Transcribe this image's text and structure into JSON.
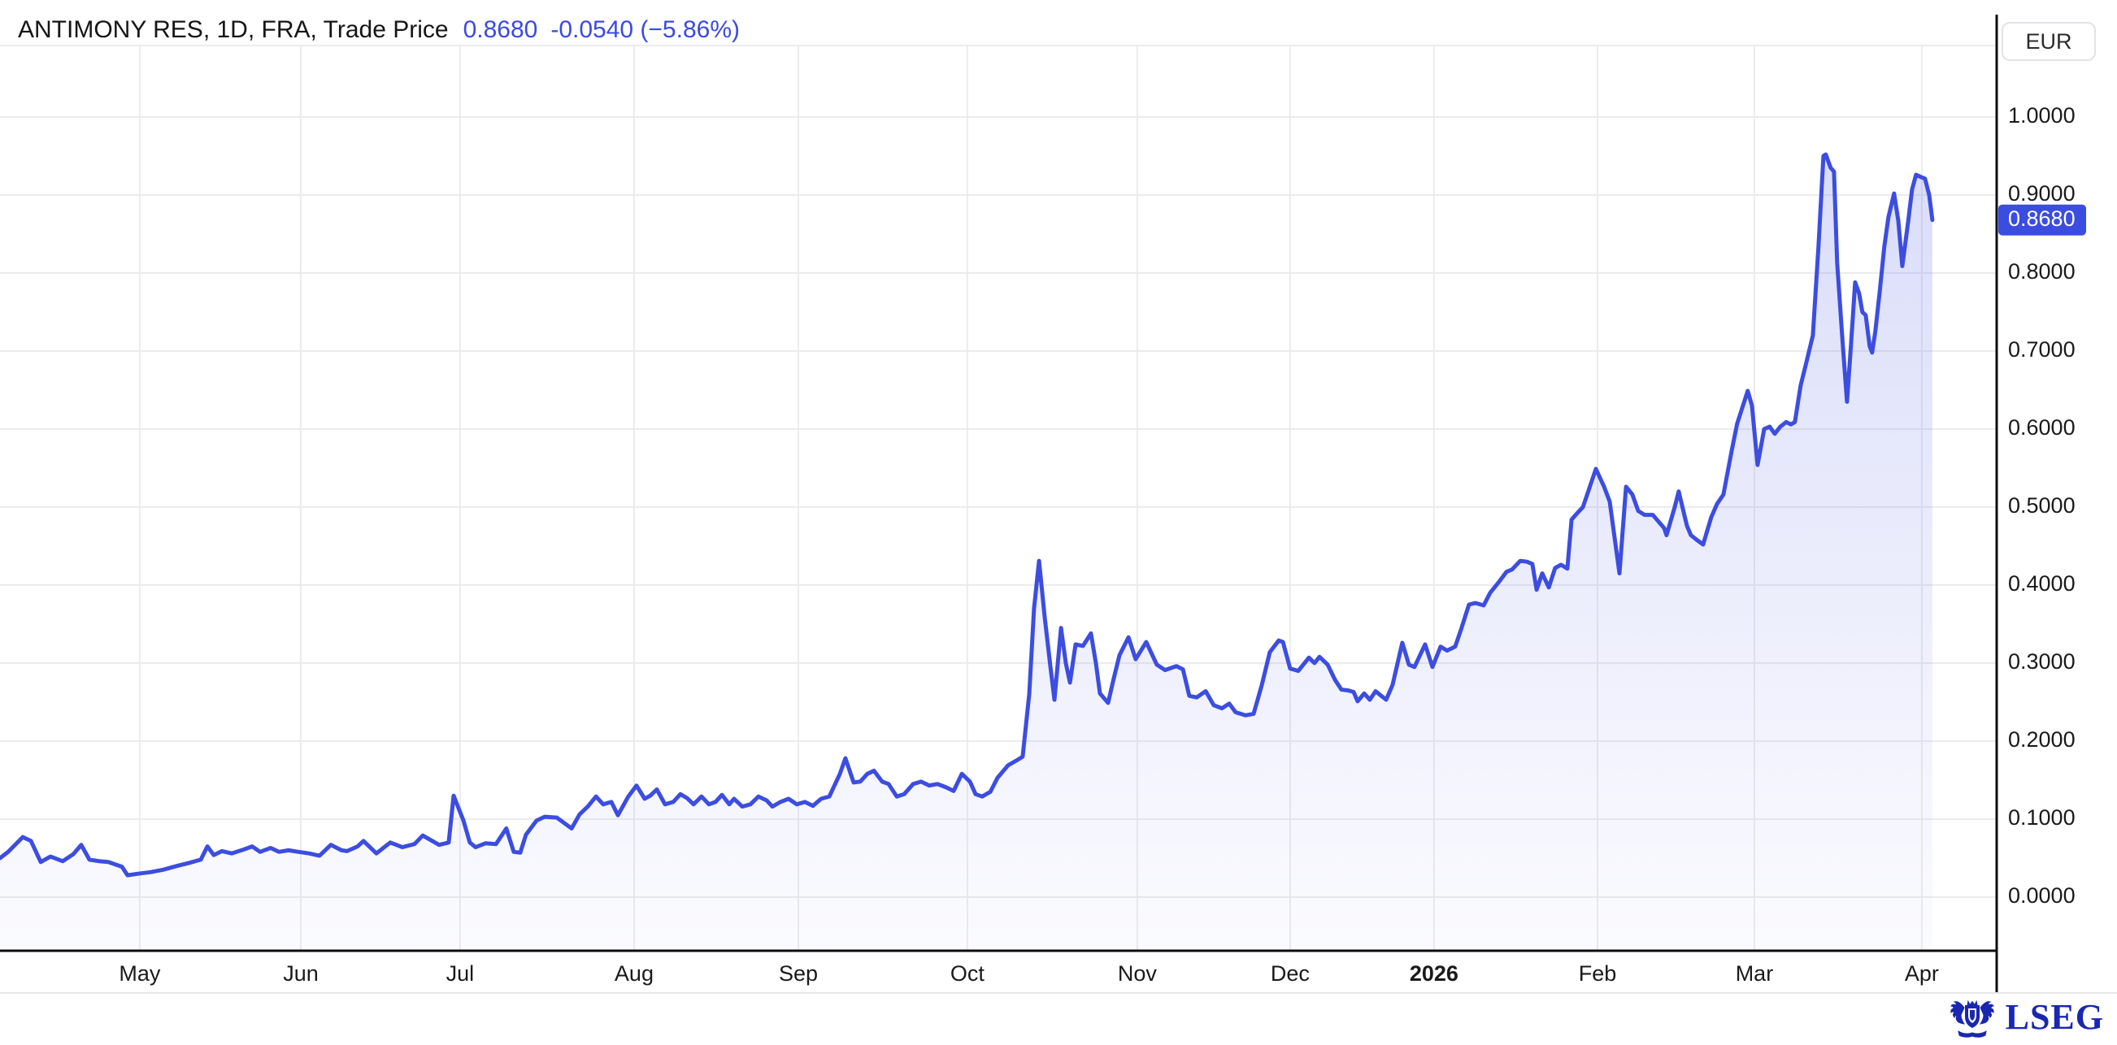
{
  "header": {
    "instrument": "ANTIMONY RES, 1D, FRA, Trade Price",
    "price": "0.8680",
    "change": "-0.0540 (−5.86%)"
  },
  "right_axis": {
    "currency": "EUR"
  },
  "footer": {
    "logo_text": "LSEG"
  },
  "theme": {
    "line_blue": "#3c4de0",
    "badge_blue": "#3b4ce1",
    "title_blue": "#3b4adf",
    "grid_gray": "#ececee",
    "axis_black": "#0c0c0c",
    "label_dark": "#1a1a1a",
    "separator_gray": "#e6e6e8",
    "lseg_blue": "#1a27b0"
  },
  "chart_data": {
    "type": "area",
    "title": "ANTIMONY RES, 1D, FRA, Trade Price",
    "currency": "EUR",
    "interval": "1D",
    "venue": "FRA",
    "last_price": 0.868,
    "change": -0.054,
    "change_pct": -5.86,
    "ylim": [
      0.0,
      1.0
    ],
    "grid": true,
    "y_ticks": [
      0.0,
      0.1,
      0.2,
      0.3,
      0.4,
      0.5,
      0.6,
      0.7,
      0.8,
      0.9,
      1.0
    ],
    "y_tick_decimals": 4,
    "x_ticks": [
      {
        "label": "May",
        "x": 0.07
      },
      {
        "label": "Jun",
        "x": 0.1507
      },
      {
        "label": "Jul",
        "x": 0.2305
      },
      {
        "label": "Aug",
        "x": 0.3177
      },
      {
        "label": "Sep",
        "x": 0.4
      },
      {
        "label": "Oct",
        "x": 0.4847
      },
      {
        "label": "Nov",
        "x": 0.5698
      },
      {
        "label": "Dec",
        "x": 0.6464
      },
      {
        "label": "2026",
        "x": 0.7185,
        "bold": true
      },
      {
        "label": "Feb",
        "x": 0.8004
      },
      {
        "label": "Mar",
        "x": 0.879
      },
      {
        "label": "Apr",
        "x": 0.9629
      }
    ],
    "last_price_marker": {
      "value": 0.868,
      "label": "0.8680"
    },
    "points": [
      [
        0.0,
        0.05
      ],
      [
        0.0041,
        0.058
      ],
      [
        0.0114,
        0.077
      ],
      [
        0.0155,
        0.072
      ],
      [
        0.0204,
        0.045
      ],
      [
        0.0253,
        0.052
      ],
      [
        0.0314,
        0.046
      ],
      [
        0.0367,
        0.055
      ],
      [
        0.0407,
        0.067
      ],
      [
        0.0448,
        0.048
      ],
      [
        0.0497,
        0.046
      ],
      [
        0.0542,
        0.045
      ],
      [
        0.0611,
        0.039
      ],
      [
        0.0639,
        0.028
      ],
      [
        0.0692,
        0.03
      ],
      [
        0.0753,
        0.032
      ],
      [
        0.0815,
        0.035
      ],
      [
        0.0888,
        0.04
      ],
      [
        0.0949,
        0.044
      ],
      [
        0.1006,
        0.048
      ],
      [
        0.1039,
        0.065
      ],
      [
        0.1071,
        0.054
      ],
      [
        0.1112,
        0.059
      ],
      [
        0.1161,
        0.056
      ],
      [
        0.1222,
        0.061
      ],
      [
        0.1263,
        0.065
      ],
      [
        0.1303,
        0.058
      ],
      [
        0.1356,
        0.063
      ],
      [
        0.1397,
        0.058
      ],
      [
        0.1446,
        0.06
      ],
      [
        0.1495,
        0.058
      ],
      [
        0.1548,
        0.056
      ],
      [
        0.1601,
        0.053
      ],
      [
        0.1658,
        0.067
      ],
      [
        0.1711,
        0.06
      ],
      [
        0.1739,
        0.059
      ],
      [
        0.1792,
        0.065
      ],
      [
        0.1821,
        0.072
      ],
      [
        0.1886,
        0.056
      ],
      [
        0.1955,
        0.07
      ],
      [
        0.2016,
        0.064
      ],
      [
        0.2077,
        0.068
      ],
      [
        0.2118,
        0.079
      ],
      [
        0.22,
        0.067
      ],
      [
        0.2248,
        0.07
      ],
      [
        0.2273,
        0.13
      ],
      [
        0.2322,
        0.098
      ],
      [
        0.2354,
        0.07
      ],
      [
        0.2383,
        0.064
      ],
      [
        0.2432,
        0.069
      ],
      [
        0.2485,
        0.068
      ],
      [
        0.2537,
        0.088
      ],
      [
        0.2574,
        0.058
      ],
      [
        0.2607,
        0.057
      ],
      [
        0.2635,
        0.08
      ],
      [
        0.2688,
        0.098
      ],
      [
        0.2729,
        0.103
      ],
      [
        0.279,
        0.102
      ],
      [
        0.2864,
        0.088
      ],
      [
        0.2904,
        0.106
      ],
      [
        0.2945,
        0.116
      ],
      [
        0.2986,
        0.129
      ],
      [
        0.3022,
        0.119
      ],
      [
        0.3063,
        0.122
      ],
      [
        0.3096,
        0.105
      ],
      [
        0.3148,
        0.129
      ],
      [
        0.3189,
        0.143
      ],
      [
        0.323,
        0.126
      ],
      [
        0.3258,
        0.13
      ],
      [
        0.3291,
        0.138
      ],
      [
        0.3332,
        0.119
      ],
      [
        0.3373,
        0.122
      ],
      [
        0.3409,
        0.132
      ],
      [
        0.3442,
        0.127
      ],
      [
        0.3475,
        0.119
      ],
      [
        0.3515,
        0.129
      ],
      [
        0.3552,
        0.119
      ],
      [
        0.3585,
        0.122
      ],
      [
        0.3617,
        0.131
      ],
      [
        0.3654,
        0.119
      ],
      [
        0.3678,
        0.126
      ],
      [
        0.3719,
        0.116
      ],
      [
        0.376,
        0.119
      ],
      [
        0.38,
        0.129
      ],
      [
        0.3841,
        0.124
      ],
      [
        0.387,
        0.116
      ],
      [
        0.391,
        0.122
      ],
      [
        0.3951,
        0.126
      ],
      [
        0.3992,
        0.119
      ],
      [
        0.4033,
        0.122
      ],
      [
        0.4073,
        0.117
      ],
      [
        0.4114,
        0.126
      ],
      [
        0.4155,
        0.129
      ],
      [
        0.4208,
        0.158
      ],
      [
        0.4236,
        0.178
      ],
      [
        0.4277,
        0.147
      ],
      [
        0.431,
        0.148
      ],
      [
        0.4346,
        0.158
      ],
      [
        0.4379,
        0.162
      ],
      [
        0.442,
        0.148
      ],
      [
        0.4452,
        0.145
      ],
      [
        0.4493,
        0.129
      ],
      [
        0.453,
        0.132
      ],
      [
        0.4575,
        0.145
      ],
      [
        0.4615,
        0.148
      ],
      [
        0.4656,
        0.143
      ],
      [
        0.4697,
        0.145
      ],
      [
        0.4738,
        0.141
      ],
      [
        0.4778,
        0.136
      ],
      [
        0.4819,
        0.158
      ],
      [
        0.486,
        0.148
      ],
      [
        0.4888,
        0.132
      ],
      [
        0.4921,
        0.129
      ],
      [
        0.4962,
        0.135
      ],
      [
        0.4998,
        0.153
      ],
      [
        0.5051,
        0.169
      ],
      [
        0.5092,
        0.175
      ],
      [
        0.5124,
        0.18
      ],
      [
        0.5157,
        0.26
      ],
      [
        0.5181,
        0.37
      ],
      [
        0.5206,
        0.431
      ],
      [
        0.5234,
        0.36
      ],
      [
        0.5263,
        0.295
      ],
      [
        0.5283,
        0.253
      ],
      [
        0.5316,
        0.345
      ],
      [
        0.534,
        0.3
      ],
      [
        0.5361,
        0.275
      ],
      [
        0.5389,
        0.324
      ],
      [
        0.5426,
        0.322
      ],
      [
        0.5466,
        0.338
      ],
      [
        0.5491,
        0.3
      ],
      [
        0.5511,
        0.261
      ],
      [
        0.5552,
        0.249
      ],
      [
        0.558,
        0.28
      ],
      [
        0.5609,
        0.31
      ],
      [
        0.5654,
        0.333
      ],
      [
        0.569,
        0.305
      ],
      [
        0.5743,
        0.327
      ],
      [
        0.5796,
        0.298
      ],
      [
        0.5837,
        0.291
      ],
      [
        0.5894,
        0.296
      ],
      [
        0.5927,
        0.292
      ],
      [
        0.5959,
        0.258
      ],
      [
        0.5996,
        0.256
      ],
      [
        0.6041,
        0.264
      ],
      [
        0.6081,
        0.246
      ],
      [
        0.6122,
        0.242
      ],
      [
        0.6159,
        0.248
      ],
      [
        0.6191,
        0.237
      ],
      [
        0.624,
        0.233
      ],
      [
        0.6281,
        0.235
      ],
      [
        0.6322,
        0.272
      ],
      [
        0.6362,
        0.314
      ],
      [
        0.6407,
        0.329
      ],
      [
        0.6428,
        0.327
      ],
      [
        0.6464,
        0.293
      ],
      [
        0.6505,
        0.29
      ],
      [
        0.6558,
        0.307
      ],
      [
        0.6586,
        0.3
      ],
      [
        0.6611,
        0.308
      ],
      [
        0.6652,
        0.298
      ],
      [
        0.6688,
        0.279
      ],
      [
        0.6721,
        0.266
      ],
      [
        0.6753,
        0.265
      ],
      [
        0.6782,
        0.263
      ],
      [
        0.6802,
        0.251
      ],
      [
        0.6835,
        0.261
      ],
      [
        0.6863,
        0.253
      ],
      [
        0.6892,
        0.264
      ],
      [
        0.6916,
        0.259
      ],
      [
        0.6945,
        0.253
      ],
      [
        0.6977,
        0.272
      ],
      [
        0.7026,
        0.326
      ],
      [
        0.7059,
        0.298
      ],
      [
        0.7087,
        0.295
      ],
      [
        0.714,
        0.324
      ],
      [
        0.7177,
        0.295
      ],
      [
        0.7218,
        0.321
      ],
      [
        0.725,
        0.316
      ],
      [
        0.7291,
        0.321
      ],
      [
        0.7319,
        0.342
      ],
      [
        0.736,
        0.375
      ],
      [
        0.7393,
        0.377
      ],
      [
        0.7434,
        0.374
      ],
      [
        0.7466,
        0.39
      ],
      [
        0.7507,
        0.403
      ],
      [
        0.7548,
        0.417
      ],
      [
        0.7576,
        0.42
      ],
      [
        0.7617,
        0.431
      ],
      [
        0.765,
        0.43
      ],
      [
        0.7678,
        0.427
      ],
      [
        0.7699,
        0.394
      ],
      [
        0.7727,
        0.415
      ],
      [
        0.776,
        0.397
      ],
      [
        0.7792,
        0.422
      ],
      [
        0.7821,
        0.426
      ],
      [
        0.7853,
        0.421
      ],
      [
        0.7874,
        0.484
      ],
      [
        0.7902,
        0.492
      ],
      [
        0.7931,
        0.5
      ],
      [
        0.7996,
        0.549
      ],
      [
        0.8037,
        0.526
      ],
      [
        0.8065,
        0.507
      ],
      [
        0.8114,
        0.415
      ],
      [
        0.8147,
        0.526
      ],
      [
        0.8179,
        0.516
      ],
      [
        0.8208,
        0.495
      ],
      [
        0.824,
        0.49
      ],
      [
        0.8281,
        0.49
      ],
      [
        0.8301,
        0.484
      ],
      [
        0.8338,
        0.473
      ],
      [
        0.835,
        0.464
      ],
      [
        0.8391,
        0.5
      ],
      [
        0.8411,
        0.52
      ],
      [
        0.8452,
        0.476
      ],
      [
        0.8472,
        0.464
      ],
      [
        0.8501,
        0.458
      ],
      [
        0.8533,
        0.452
      ],
      [
        0.8574,
        0.487
      ],
      [
        0.8603,
        0.504
      ],
      [
        0.8635,
        0.516
      ],
      [
        0.8676,
        0.572
      ],
      [
        0.8704,
        0.607
      ],
      [
        0.8757,
        0.649
      ],
      [
        0.8778,
        0.63
      ],
      [
        0.8806,
        0.554
      ],
      [
        0.8839,
        0.6
      ],
      [
        0.8867,
        0.603
      ],
      [
        0.8892,
        0.594
      ],
      [
        0.892,
        0.603
      ],
      [
        0.8949,
        0.609
      ],
      [
        0.8973,
        0.606
      ],
      [
        0.8993,
        0.609
      ],
      [
        0.9022,
        0.656
      ],
      [
        0.905,
        0.685
      ],
      [
        0.9083,
        0.72
      ],
      [
        0.9111,
        0.834
      ],
      [
        0.9136,
        0.95
      ],
      [
        0.9148,
        0.952
      ],
      [
        0.9172,
        0.935
      ],
      [
        0.9189,
        0.93
      ],
      [
        0.9205,
        0.813
      ],
      [
        0.9233,
        0.708
      ],
      [
        0.9254,
        0.635
      ],
      [
        0.9274,
        0.708
      ],
      [
        0.9295,
        0.788
      ],
      [
        0.9315,
        0.774
      ],
      [
        0.9331,
        0.75
      ],
      [
        0.9348,
        0.746
      ],
      [
        0.9368,
        0.706
      ],
      [
        0.938,
        0.698
      ],
      [
        0.9396,
        0.725
      ],
      [
        0.9417,
        0.774
      ],
      [
        0.9441,
        0.834
      ],
      [
        0.9462,
        0.872
      ],
      [
        0.949,
        0.902
      ],
      [
        0.9511,
        0.867
      ],
      [
        0.9531,
        0.809
      ],
      [
        0.956,
        0.865
      ],
      [
        0.958,
        0.907
      ],
      [
        0.96,
        0.926
      ],
      [
        0.9625,
        0.923
      ],
      [
        0.9645,
        0.921
      ],
      [
        0.9666,
        0.9
      ],
      [
        0.9682,
        0.868
      ]
    ]
  }
}
